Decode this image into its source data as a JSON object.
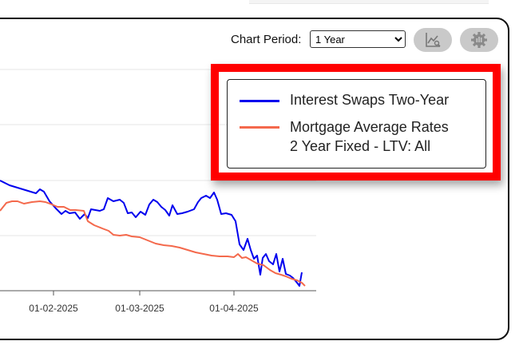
{
  "controls": {
    "period_label": "Chart Period:",
    "period_selected": "1 Year",
    "zoom_icon": "chart-zoom-icon",
    "settings_icon": "gear-icon"
  },
  "legend": {
    "items": [
      {
        "label": "Interest Swaps Two-Year",
        "color": "#0000ee"
      },
      {
        "label": "Mortgage Average Rates",
        "label2": "2 Year Fixed - LTV: All",
        "color": "#f4694c"
      }
    ]
  },
  "chart_data": {
    "type": "line",
    "x_ticks": [
      "01-02-2025",
      "01-03-2025",
      "01-04-2025"
    ],
    "grid": true,
    "legend_placement": "top-right",
    "series": [
      {
        "name": "Interest Swaps Two-Year",
        "color": "#0000ee",
        "points": [
          [
            0,
            226
          ],
          [
            12,
            232
          ],
          [
            45,
            242
          ],
          [
            50,
            237
          ],
          [
            55,
            240
          ],
          [
            62,
            252
          ],
          [
            70,
            261
          ],
          [
            77,
            268
          ],
          [
            82,
            264
          ],
          [
            87,
            267
          ],
          [
            94,
            266
          ],
          [
            100,
            274
          ],
          [
            106,
            268
          ],
          [
            110,
            273
          ],
          [
            114,
            262
          ],
          [
            125,
            264
          ],
          [
            130,
            262
          ],
          [
            135,
            248
          ],
          [
            142,
            252
          ],
          [
            150,
            250
          ],
          [
            155,
            254
          ],
          [
            160,
            267
          ],
          [
            165,
            266
          ],
          [
            170,
            272
          ],
          [
            176,
            265
          ],
          [
            182,
            269
          ],
          [
            187,
            256
          ],
          [
            192,
            250
          ],
          [
            197,
            253
          ],
          [
            202,
            259
          ],
          [
            207,
            263
          ],
          [
            212,
            270
          ],
          [
            216,
            257
          ],
          [
            222,
            268
          ],
          [
            228,
            267
          ],
          [
            235,
            265
          ],
          [
            243,
            262
          ],
          [
            248,
            253
          ],
          [
            252,
            248
          ],
          [
            258,
            245
          ],
          [
            263,
            248
          ],
          [
            268,
            241
          ],
          [
            272,
            250
          ],
          [
            277,
            268
          ],
          [
            283,
            267
          ],
          [
            290,
            269
          ],
          [
            295,
            277
          ],
          [
            300,
            306
          ],
          [
            305,
            313
          ],
          [
            310,
            299
          ],
          [
            314,
            313
          ],
          [
            318,
            324
          ],
          [
            322,
            320
          ],
          [
            326,
            344
          ],
          [
            329,
            323
          ],
          [
            333,
            318
          ],
          [
            337,
            327
          ],
          [
            342,
            331
          ],
          [
            346,
            318
          ],
          [
            350,
            340
          ],
          [
            354,
            324
          ],
          [
            358,
            343
          ],
          [
            363,
            345
          ],
          [
            367,
            348
          ],
          [
            372,
            354
          ],
          [
            375,
            358
          ],
          [
            378,
            341
          ]
        ]
      },
      {
        "name": "Mortgage Average Rates 2 Year Fixed - LTV: All",
        "color": "#f4694c",
        "points": [
          [
            0,
            264
          ],
          [
            8,
            254
          ],
          [
            15,
            252
          ],
          [
            22,
            252
          ],
          [
            30,
            255
          ],
          [
            40,
            253
          ],
          [
            50,
            252
          ],
          [
            57,
            253
          ],
          [
            65,
            256
          ],
          [
            72,
            259
          ],
          [
            80,
            259
          ],
          [
            88,
            263
          ],
          [
            95,
            263
          ],
          [
            105,
            264
          ],
          [
            110,
            277
          ],
          [
            118,
            282
          ],
          [
            128,
            286
          ],
          [
            136,
            289
          ],
          [
            142,
            294
          ],
          [
            150,
            295
          ],
          [
            158,
            294
          ],
          [
            165,
            296
          ],
          [
            175,
            297
          ],
          [
            185,
            301
          ],
          [
            195,
            305
          ],
          [
            205,
            307
          ],
          [
            215,
            308
          ],
          [
            225,
            310
          ],
          [
            235,
            313
          ],
          [
            245,
            316
          ],
          [
            255,
            318
          ],
          [
            265,
            320
          ],
          [
            275,
            321
          ],
          [
            285,
            321
          ],
          [
            293,
            322
          ],
          [
            298,
            318
          ],
          [
            303,
            323
          ],
          [
            308,
            322
          ],
          [
            315,
            326
          ],
          [
            322,
            330
          ],
          [
            330,
            332
          ],
          [
            338,
            338
          ],
          [
            345,
            342
          ],
          [
            352,
            344
          ],
          [
            358,
            346
          ],
          [
            365,
            349
          ],
          [
            372,
            351
          ],
          [
            378,
            354
          ],
          [
            382,
            358
          ]
        ]
      }
    ]
  }
}
